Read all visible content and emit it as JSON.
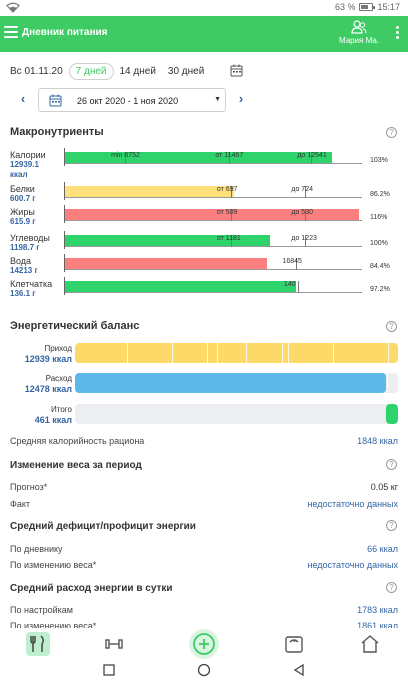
{
  "status_bar": {
    "battery": "63 %",
    "time": "15:17"
  },
  "app_bar": {
    "title": "Дневник питания",
    "user": "Мария Ма."
  },
  "period_tabs": [
    "Вс 01.11.20",
    "7 дней",
    "14 дней",
    "30 дней"
  ],
  "active_tab": "7 дней",
  "date_range": "26 окт 2020 - 1 ноя 2020",
  "macros": {
    "title": "Макронутриенты",
    "rows": [
      {
        "label": "Калории",
        "value": "12939.1 ккал",
        "pct": "103%",
        "color": "#2ed36b",
        "fill": 0.9,
        "marks": [
          {
            "text": "min 8752",
            "at": 0.205
          },
          {
            "text": "от 11467",
            "at": 0.555
          },
          {
            "text": "до 12541",
            "at": 0.83
          }
        ]
      },
      {
        "label": "Белки",
        "value": "600.7 г",
        "pct": "86.2%",
        "color": "#fde07a",
        "fill": 0.57,
        "marks": [
          {
            "text": "от 697",
            "at": 0.56
          },
          {
            "text": "до 724",
            "at": 0.81
          }
        ]
      },
      {
        "label": "Жиры",
        "value": "615.9 г",
        "pct": "116%",
        "color": "#fb7f7f",
        "fill": 0.99,
        "marks": [
          {
            "text": "от 509",
            "at": 0.56
          },
          {
            "text": "до 530",
            "at": 0.81
          }
        ]
      },
      {
        "label": "Углеводы",
        "value": "1198.7 г",
        "pct": "100%",
        "color": "#2ed36b",
        "fill": 0.69,
        "marks": [
          {
            "text": "от 1181",
            "at": 0.56
          },
          {
            "text": "до 1223",
            "at": 0.81
          }
        ]
      },
      {
        "label": "Вода",
        "value": "14213 г",
        "pct": "84.4%",
        "color": "#fb7f7f",
        "fill": 0.68,
        "marks": [
          {
            "text": "16845",
            "at": 0.78
          }
        ]
      },
      {
        "label": "Клетчатка",
        "value": "136.1 г",
        "pct": "97.2%",
        "color": "#2ed36b",
        "fill": 0.78,
        "marks": [
          {
            "text": "140",
            "at": 0.785
          }
        ]
      }
    ]
  },
  "energy": {
    "title": "Энергетический баланс",
    "rows": [
      {
        "label": "Приход",
        "value": "12939 ккал",
        "color": "#fdd967",
        "fill": 1.0
      },
      {
        "label": "Расход",
        "value": "12478 ккал",
        "color": "#5bb8e8",
        "fill": 0.964
      },
      {
        "label": "Итого",
        "value": "461 ккал",
        "color": "#2ed36b",
        "fill": 0.036
      }
    ],
    "avg_label": "Средняя калорийность рациона",
    "avg_value": "1848 ккал"
  },
  "weight_change": {
    "title": "Изменение веса за период",
    "forecast_label": "Прогноз*",
    "forecast_value": "0.05 кг",
    "fact_label": "Факт",
    "fact_value": "недостаточно данных"
  },
  "deficit": {
    "title": "Средний дефицит/профицит энергии",
    "diary_label": "По дневнику",
    "diary_value": "66 ккал",
    "weight_label": "По изменению веса*",
    "weight_value": "недостаточно данных"
  },
  "expenditure": {
    "title": "Средний расход энергии в сутки",
    "settings_label": "По настройкам",
    "settings_value": "1783 ккал",
    "weight_label": "По изменению веса*",
    "weight_value": "1861 ккал"
  },
  "colors": {
    "brand": "#3ecb63",
    "link": "#3465a4"
  }
}
